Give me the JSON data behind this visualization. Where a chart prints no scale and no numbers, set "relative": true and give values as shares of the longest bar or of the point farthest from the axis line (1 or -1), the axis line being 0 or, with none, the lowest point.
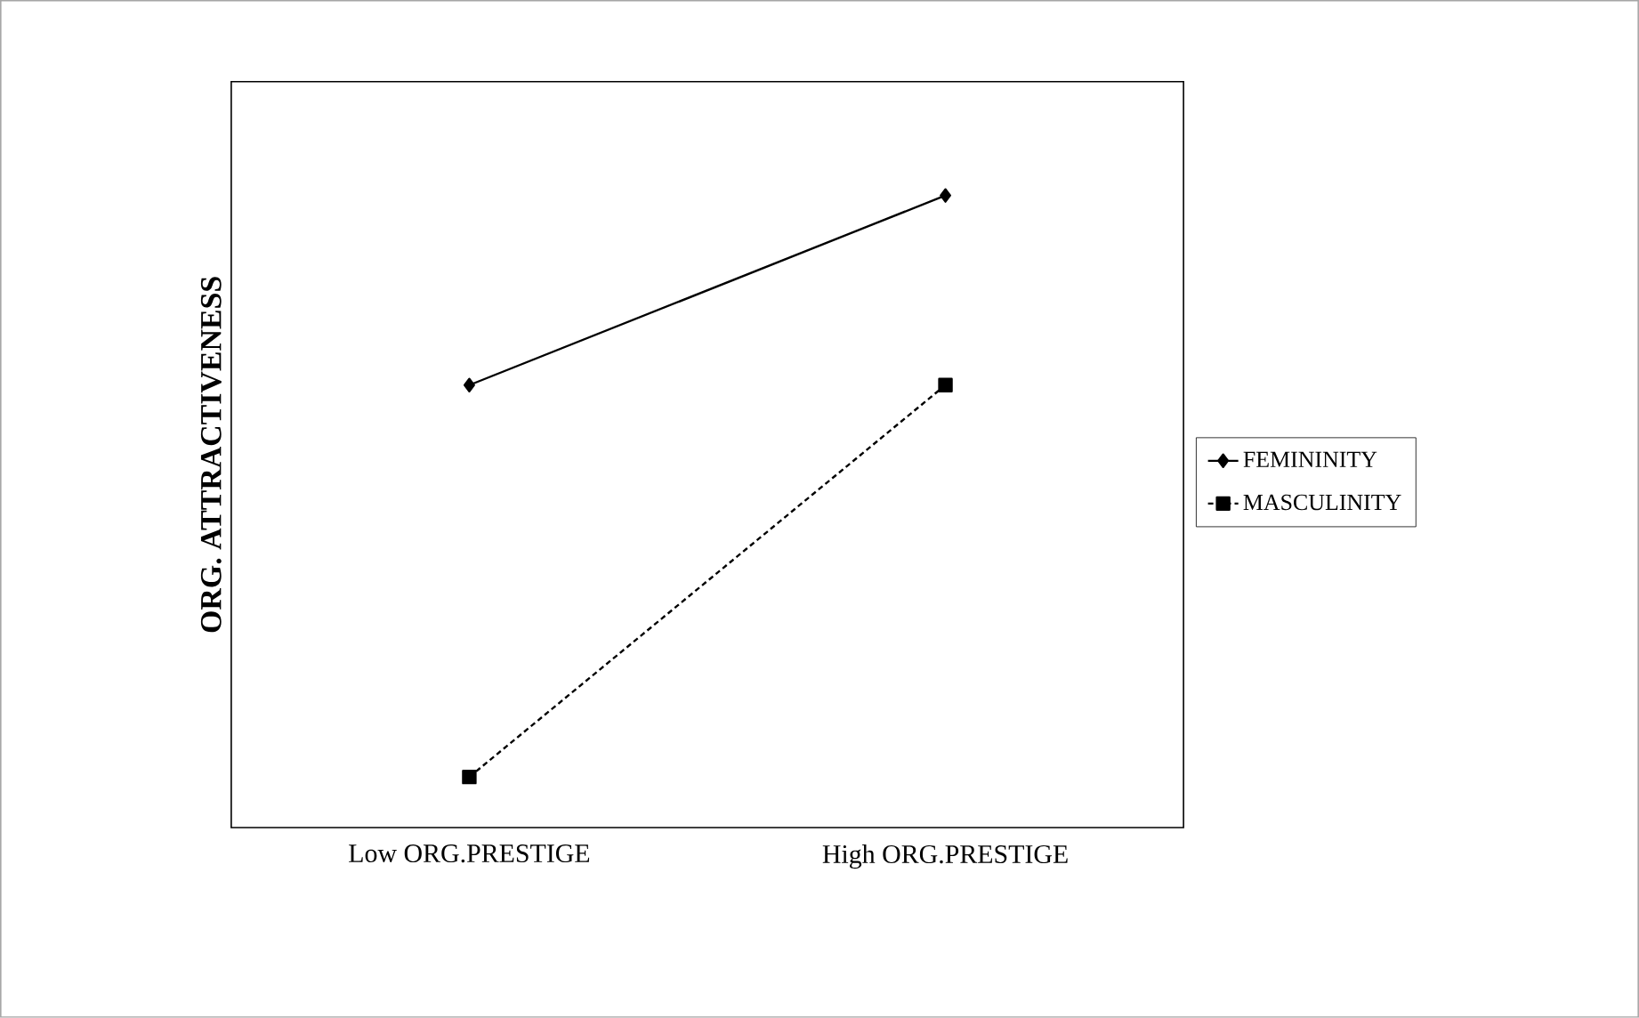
{
  "chart_data": {
    "type": "line",
    "ylabel": "ORG. ATTRACTIVENESS",
    "categories": [
      "Low ORG.PRESTIGE",
      "High ORG.PRESTIGE"
    ],
    "relative": true,
    "legend": "right",
    "series": [
      {
        "name": "FEMININITY",
        "color": "#000000",
        "marker": "diamond",
        "line_style": "solid",
        "values": [
          0.7,
          1
        ]
      },
      {
        "name": "MASCULINITY",
        "color": "#000000",
        "marker": "square",
        "line_style": "dashed",
        "values": [
          0.08,
          0.7
        ]
      }
    ]
  }
}
